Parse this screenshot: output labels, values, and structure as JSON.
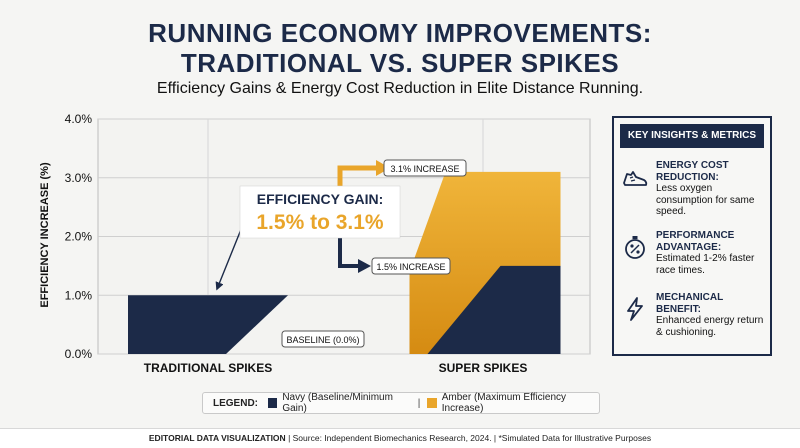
{
  "header": {
    "title_line1": "RUNNING ECONOMY IMPROVEMENTS:",
    "title_line2": "TRADITIONAL VS. SUPER SPIKES",
    "subtitle": "Efficiency Gains & Energy Cost Reduction in Elite Distance Running."
  },
  "chart_data": {
    "type": "bar",
    "ylabel": "EFFICIENCY INCREASE (%)",
    "ylim": [
      0,
      4.0
    ],
    "yticks": [
      "0.0%",
      "1.0%",
      "2.0%",
      "3.0%",
      "4.0%"
    ],
    "categories": [
      "TRADITIONAL SPIKES",
      "SUPER SPIKES"
    ],
    "series": [
      {
        "name": "Navy (Baseline/Minimum Gain)",
        "color": "#1c2a48",
        "values": [
          1.0,
          1.5
        ]
      },
      {
        "name": "Amber (Maximum Efficiency Increase)",
        "color": "#e9a52a",
        "values": [
          null,
          3.1
        ]
      }
    ],
    "annotations": {
      "gain_title": "EFFICIENCY GAIN:",
      "gain_value": "1.5% to 3.1%",
      "max_label": "3.1% INCREASE",
      "min_label": "1.5% INCREASE",
      "baseline_label": "BASELINE (0.0%)"
    },
    "grid": true
  },
  "insights": {
    "title": "KEY INSIGHTS & METRICS",
    "items": [
      {
        "icon": "shoe-icon",
        "heading": "ENERGY COST REDUCTION:",
        "text": "Less oxygen consumption for same speed."
      },
      {
        "icon": "stopwatch-percent-icon",
        "heading": "PERFORMANCE ADVANTAGE:",
        "text": "Estimated 1-2% faster race times."
      },
      {
        "icon": "lightning-icon",
        "heading": "MECHANICAL BENEFIT:",
        "text": "Enhanced energy return & cushioning."
      }
    ]
  },
  "legend": {
    "title": "LEGEND:",
    "navy_label": "Navy (Baseline/Minimum Gain)",
    "amber_label": "Amber (Maximum Efficiency Increase)",
    "separator": "|"
  },
  "footer": {
    "bold": "EDITORIAL DATA VISUALIZATION",
    "text": "| Source: Independent Biomechanics Research, 2024. | *Simulated Data for Illustrative Purposes"
  },
  "colors": {
    "navy": "#1c2a48",
    "amber": "#e9a52a",
    "background": "#f5f5f3"
  }
}
